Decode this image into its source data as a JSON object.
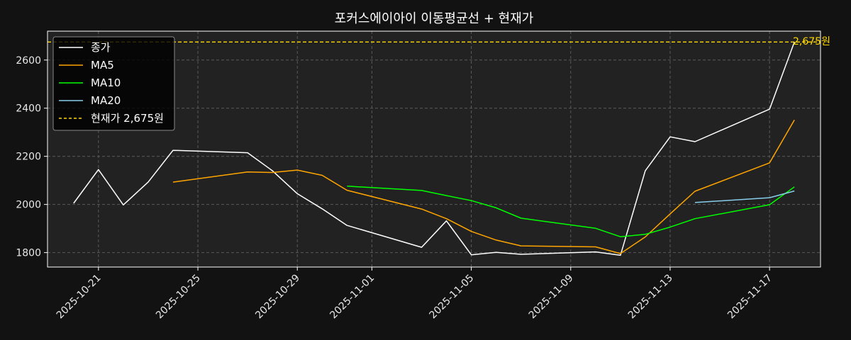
{
  "chart_data": {
    "type": "line",
    "title": "포커스에이아이 이동평균선 + 현재가",
    "xlabel": "",
    "ylabel": "",
    "x": [
      "2025-10-20",
      "2025-10-21",
      "2025-10-22",
      "2025-10-23",
      "2025-10-24",
      "2025-10-27",
      "2025-10-28",
      "2025-10-29",
      "2025-10-30",
      "2025-10-31",
      "2025-11-03",
      "2025-11-04",
      "2025-11-05",
      "2025-11-06",
      "2025-11-07",
      "2025-11-10",
      "2025-11-11",
      "2025-11-12",
      "2025-11-13",
      "2025-11-14",
      "2025-11-17",
      "2025-11-18"
    ],
    "series": [
      {
        "name": "종가",
        "color": "#ffffff",
        "values": [
          2005,
          2145,
          1998,
          2093,
          2225,
          2215,
          2140,
          2045,
          1982,
          1913,
          1822,
          1932,
          1791,
          1801,
          1793,
          1803,
          1789,
          2140,
          2281,
          2261,
          2396,
          2675
        ]
      },
      {
        "name": "MA5",
        "color": "#ffa500",
        "values": [
          null,
          null,
          null,
          null,
          2093,
          2135,
          2133,
          2143,
          2121,
          2059,
          1981,
          1941,
          1888,
          1852,
          1828,
          1824,
          1796,
          1865,
          1961,
          2055,
          2173,
          2351
        ]
      },
      {
        "name": "MA10",
        "color": "#00ff00",
        "values": [
          null,
          null,
          null,
          null,
          null,
          null,
          null,
          null,
          null,
          2076,
          2058,
          2037,
          2016,
          1986,
          1943,
          1901,
          1866,
          1876,
          1906,
          1941,
          1999,
          2073
        ]
      },
      {
        "name": "MA20",
        "color": "#87ceeb",
        "values": [
          null,
          null,
          null,
          null,
          null,
          null,
          null,
          null,
          null,
          null,
          null,
          null,
          null,
          null,
          null,
          null,
          null,
          null,
          null,
          2008,
          2028,
          2056
        ]
      }
    ],
    "current_price": {
      "value": 2675,
      "label": "현재가 2,675원",
      "annotation": "2,675원",
      "color": "#ffd700"
    },
    "xticks": [
      "2025-10-21",
      "2025-10-25",
      "2025-10-29",
      "2025-11-01",
      "2025-11-05",
      "2025-11-09",
      "2025-11-13",
      "2025-11-17"
    ],
    "yticks": [
      1800,
      2000,
      2200,
      2400,
      2600
    ],
    "ylim": [
      1740,
      2720
    ],
    "xlim": [
      "2025-10-18T22:48",
      "2025-11-19T01:12"
    ],
    "grid": true,
    "legend_position": "top-left"
  }
}
